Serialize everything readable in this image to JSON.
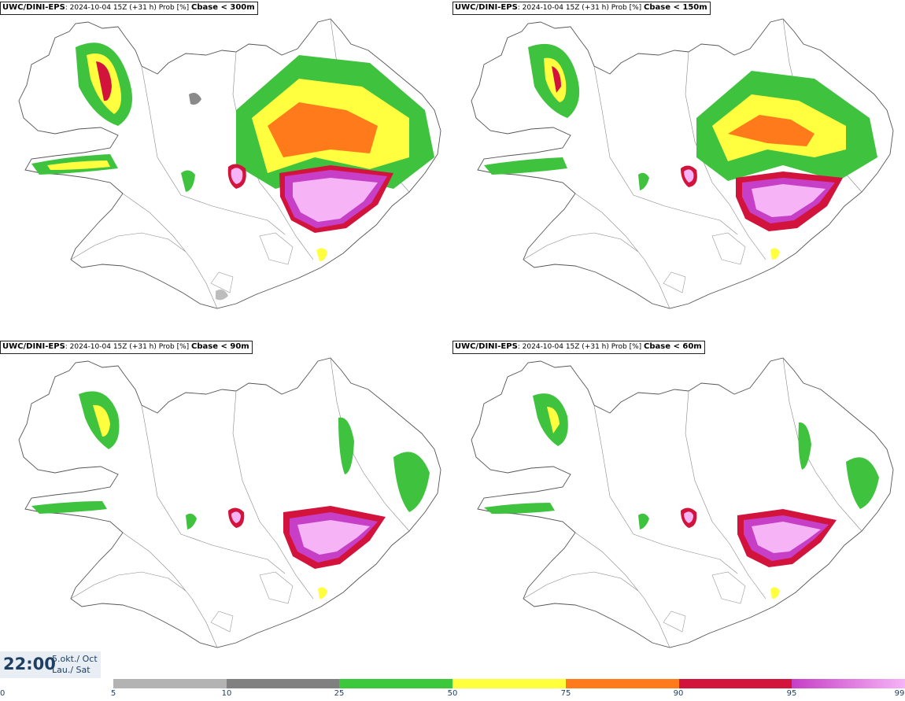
{
  "panels": [
    {
      "model": "UWC/DINI-EPS",
      "info": ": 2024-10-04 15Z (+31 h) Prob [%]",
      "param": "Cbase < 300m"
    },
    {
      "model": "UWC/DINI-EPS",
      "info": ": 2024-10-04 15Z (+31 h) Prob [%]",
      "param": "Cbase < 150m"
    },
    {
      "model": "UWC/DINI-EPS",
      "info": ": 2024-10-04 15Z (+31 h) Prob [%]",
      "param": "Cbase < 90m"
    },
    {
      "model": "UWC/DINI-EPS",
      "info": ": 2024-10-04 15Z (+31 h) Prob [%]",
      "param": "Cbase < 60m"
    }
  ],
  "timestamp": {
    "time": "22:00",
    "date_line1": "5.okt./ Oct",
    "date_line2": "Lau./ Sat"
  },
  "legend": {
    "ticks": [
      "0",
      "5",
      "10",
      "25",
      "50",
      "75",
      "90",
      "95",
      "99"
    ],
    "colors": [
      "#b3b3b3",
      "#808080",
      "#3bc93b",
      "#ffff3b",
      "#ff7a1a",
      "#d2143c",
      "#c63fc6"
    ]
  },
  "colors": {
    "gray_light": "#bdbdbd",
    "gray_dark": "#8a8a8a",
    "green": "#3fc33f",
    "yellow": "#ffff40",
    "orange": "#ff7a1a",
    "red": "#d2143c",
    "magenta": "#c63fc6",
    "pink": "#f6b3f6"
  }
}
